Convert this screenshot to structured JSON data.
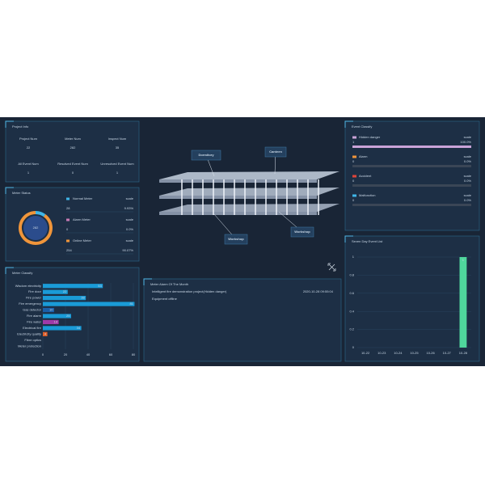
{
  "project_info": {
    "title": "Project Info",
    "items": [
      {
        "label": "Project Num",
        "value": 22
      },
      {
        "label": "Meter Num",
        "value": 282
      },
      {
        "label": "Inspect Num",
        "value": 35
      },
      {
        "label": "All Event Num",
        "value": 1
      },
      {
        "label": "Resolved Event Num",
        "value": 0
      },
      {
        "label": "Unresolved Event Num",
        "value": 1
      }
    ]
  },
  "meter_status": {
    "title": "Meter Status",
    "total": 282,
    "items": [
      {
        "name": "Normal Meter",
        "scale_label": "scale",
        "count": 28,
        "percent": "9.93%",
        "color": "#3fb6e8"
      },
      {
        "name": "Alarm Meter",
        "scale_label": "scale",
        "count": 0,
        "percent": "0.0%",
        "color": "#c77bb5"
      },
      {
        "name": "Online Meter",
        "scale_label": "scale",
        "count": 254,
        "percent": "90.07%",
        "color": "#f0953a"
      }
    ]
  },
  "building": {
    "labels": [
      "Dormitory",
      "Canteen",
      "Workshop",
      "Workshop"
    ]
  },
  "alarm_month": {
    "title": "Meter Alarm Of The Month",
    "rows": [
      {
        "project": "Intelligent fire demonstration project(Hidden danger)",
        "time": "2020-10-28 09:55:04",
        "status": "Equipment offline"
      }
    ]
  },
  "event_classify": {
    "title": "Event Classify",
    "items": [
      {
        "name": "Hidden danger",
        "scale_label": "scale",
        "count": 1,
        "percent": "100.0%",
        "color": "#c9a3d8"
      },
      {
        "name": "Alarm",
        "scale_label": "scale",
        "count": 0,
        "percent": "0.0%",
        "color": "#f0953a"
      },
      {
        "name": "Accident",
        "scale_label": "scale",
        "count": 0,
        "percent": "0.0%",
        "color": "#e0443a"
      },
      {
        "name": "Malfunction",
        "scale_label": "scale",
        "count": 0,
        "percent": "0.0%",
        "color": "#3fb6e8"
      }
    ]
  },
  "chart_data": [
    {
      "type": "hbar",
      "title": "Meter Classify",
      "categories": [
        "Wisdom electricity",
        "Fire door",
        "Fire power",
        "Fire emergency",
        "Gas detector",
        "Fire alarm",
        "Fire water",
        "Electrical fire",
        "Electricity quality",
        "Fibre optics",
        "Meter protection"
      ],
      "values": [
        53,
        22,
        38,
        81,
        10,
        25,
        14,
        34,
        4,
        null,
        null
      ],
      "colors": [
        "#1a9bd7",
        "#1a9bd7",
        "#1a9bd7",
        "#1a9bd7",
        "#1a5fa8",
        "#1a9bd7",
        "#a03aa8",
        "#1a9bd7",
        "#e0602a",
        "#1a9bd7",
        "#1a9bd7"
      ],
      "xlim": [
        0,
        80
      ],
      "xticks": [
        0,
        20,
        40,
        60,
        80
      ],
      "grid": true
    },
    {
      "type": "bar",
      "title": "Seven Day Event List",
      "categories": [
        "10-22",
        "10-23",
        "10-24",
        "10-25",
        "10-26",
        "10-27",
        "10-28"
      ],
      "values": [
        0,
        0,
        0,
        0,
        0,
        0,
        1
      ],
      "color": "#4fd69c",
      "ylim": [
        0,
        1
      ],
      "yticks": [
        0,
        0.2,
        0.4,
        0.6,
        0.8,
        1
      ],
      "grid": true
    }
  ]
}
